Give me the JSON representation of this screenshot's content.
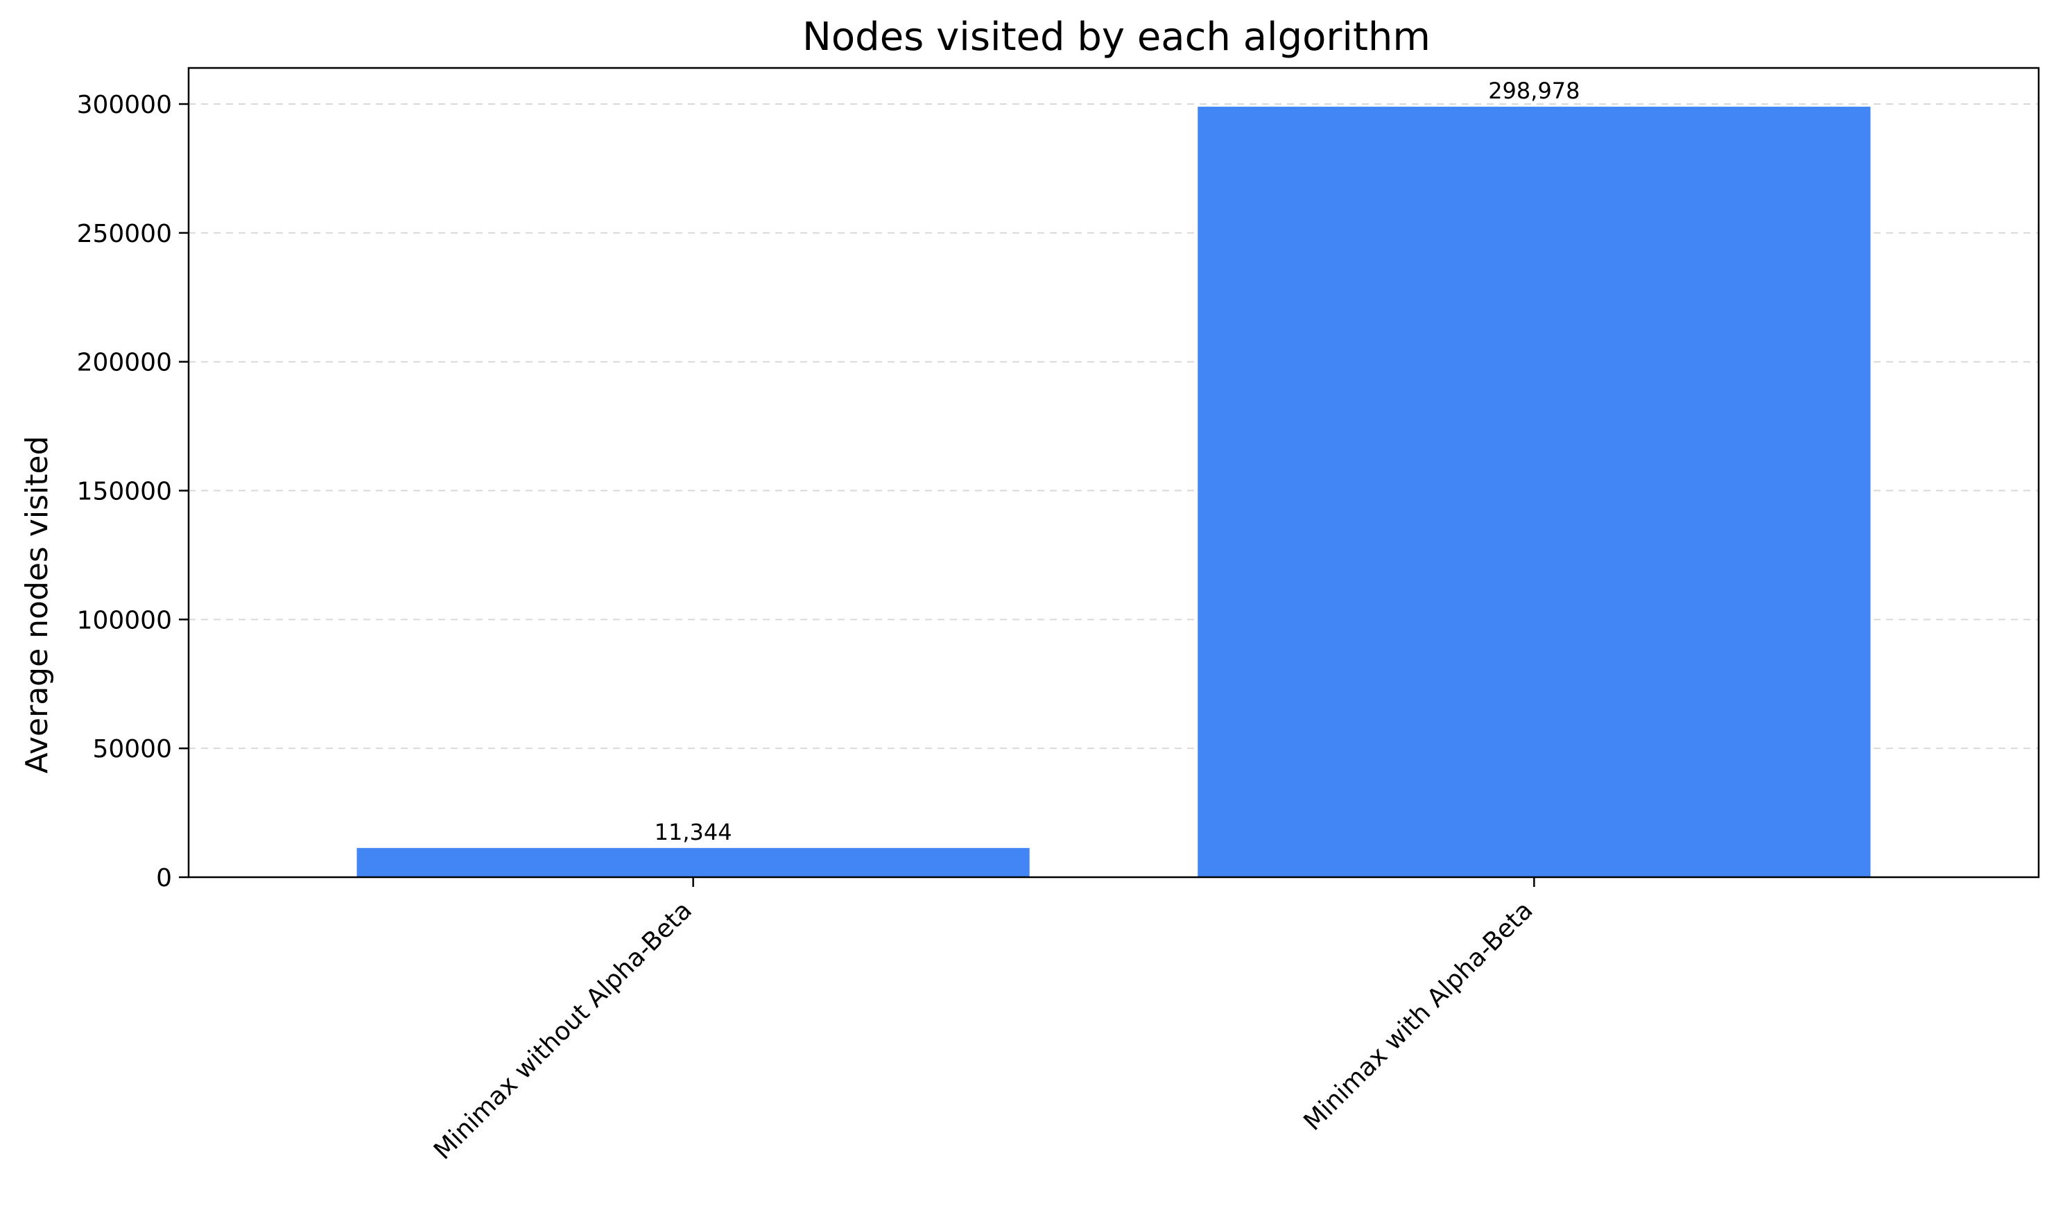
{
  "chart_data": {
    "type": "bar",
    "title": "Nodes visited by each algorithm",
    "xlabel": "",
    "ylabel": "Average nodes visited",
    "categories": [
      "Minimax without Alpha-Beta",
      "Minimax with Alpha-Beta"
    ],
    "values": [
      11344,
      298978
    ],
    "value_labels": [
      "11,344",
      "298,978"
    ],
    "ylim": [
      0,
      314000
    ],
    "yticks": [
      0,
      50000,
      100000,
      150000,
      200000,
      250000,
      300000
    ],
    "ytick_labels": [
      "0",
      "50000",
      "100000",
      "150000",
      "200000",
      "250000",
      "300000"
    ],
    "grid": "y-dashed",
    "bar_color": "#4285f4",
    "xtick_rotation_deg": 45
  }
}
